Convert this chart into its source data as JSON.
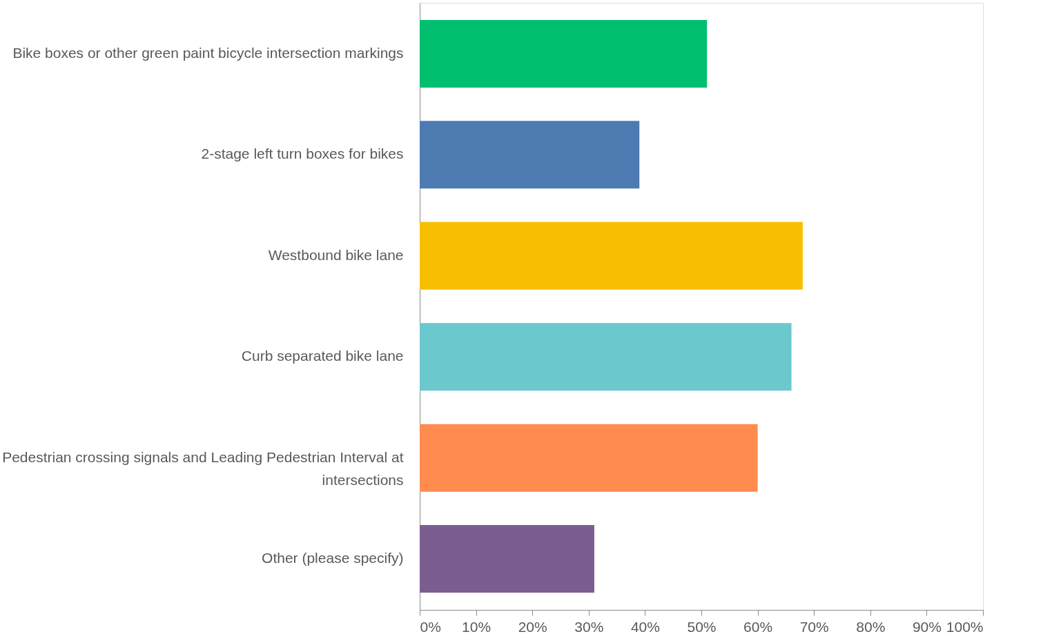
{
  "chart_data": {
    "type": "bar",
    "orientation": "horizontal",
    "categories": [
      "Bike boxes or other green paint bicycle intersection markings",
      "2-stage left turn boxes for bikes",
      "Westbound bike lane",
      "Curb separated bike lane",
      "Pedestrian crossing signals and Leading Pedestrian Interval at intersections",
      "Other (please specify)"
    ],
    "values": [
      51,
      39,
      68,
      66,
      60,
      31
    ],
    "colors": [
      "#00bf6f",
      "#4e7ab2",
      "#f8be00",
      "#6bc8cd",
      "#ff8b4f",
      "#7c5d8f"
    ],
    "xlim": [
      0,
      100
    ],
    "xticks": [
      {
        "value": 0,
        "label": "0%"
      },
      {
        "value": 10,
        "label": "10%"
      },
      {
        "value": 20,
        "label": "20%"
      },
      {
        "value": 30,
        "label": "30%"
      },
      {
        "value": 40,
        "label": "40%"
      },
      {
        "value": 50,
        "label": "50%"
      },
      {
        "value": 60,
        "label": "60%"
      },
      {
        "value": 70,
        "label": "70%"
      },
      {
        "value": 80,
        "label": "80%"
      },
      {
        "value": 90,
        "label": "90%"
      },
      {
        "value": 100,
        "label": "100%"
      }
    ],
    "grid": false,
    "legend": false
  }
}
